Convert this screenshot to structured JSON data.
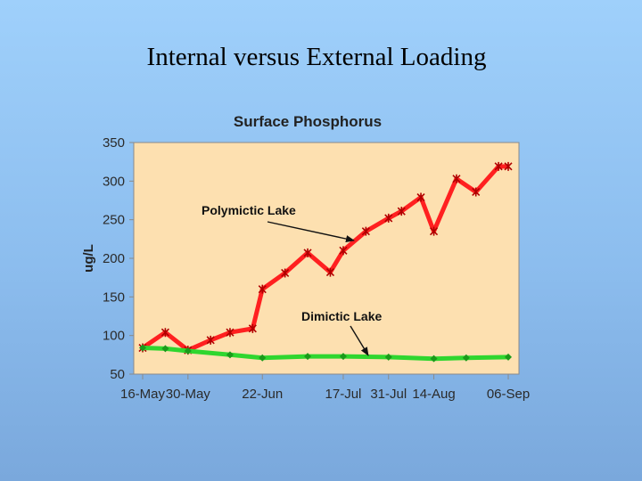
{
  "slide": {
    "title": "Internal versus External Loading"
  },
  "chart_data": {
    "type": "line",
    "title": "Surface Phosphorus",
    "xlabel": "",
    "ylabel": "ug/L",
    "ylim": [
      50,
      350
    ],
    "yticks": [
      50,
      100,
      150,
      200,
      250,
      300,
      350
    ],
    "xlim": [
      "2000-05-16",
      "2000-09-06"
    ],
    "xtick_dates": [
      "2000-05-16",
      "2000-05-30",
      "2000-06-22",
      "2000-07-17",
      "2000-07-31",
      "2000-08-14",
      "2000-09-06"
    ],
    "xtick_labels": [
      "16-May",
      "30-May",
      "22-Jun",
      "17-Jul",
      "31-Jul",
      "14-Aug",
      "06-Sep"
    ],
    "grid": false,
    "background_color": "#fde0b0",
    "series": [
      {
        "color": "#ff2020",
        "x": [
          "2000-05-16",
          "2000-05-23",
          "2000-05-30",
          "2000-06-06",
          "2000-06-12",
          "2000-06-19",
          "2000-06-22",
          "2000-06-29",
          "2000-07-06",
          "2000-07-13",
          "2000-07-17",
          "2000-07-24",
          "2000-07-31",
          "2000-08-04",
          "2000-08-10",
          "2000-08-14",
          "2000-08-21",
          "2000-08-27",
          "2000-09-03",
          "2000-09-06"
        ],
        "values": [
          84,
          104,
          81,
          94,
          104,
          109,
          160,
          181,
          207,
          182,
          210,
          235,
          252,
          261,
          279,
          235,
          303,
          286,
          319,
          319
        ]
      },
      {
        "color": "#2fd62f",
        "x": [
          "2000-05-16",
          "2000-05-23",
          "2000-05-30",
          "2000-06-12",
          "2000-06-22",
          "2000-07-06",
          "2000-07-17",
          "2000-07-31",
          "2000-08-14",
          "2000-08-24",
          "2000-09-06"
        ],
        "values": [
          84,
          83,
          80,
          75,
          71,
          73,
          73,
          72,
          70,
          71,
          72
        ]
      }
    ],
    "annotations": [
      {
        "text": "Polymictic Lake",
        "target_series": 0
      },
      {
        "text": "Dimictic Lake",
        "target_series": 1
      }
    ]
  }
}
